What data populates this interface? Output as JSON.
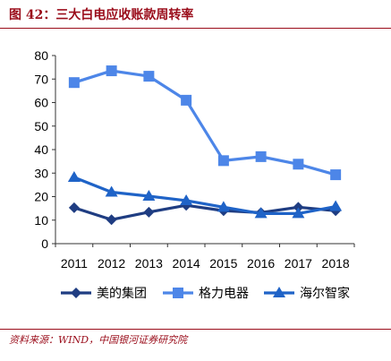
{
  "header": {
    "title": "图 42：三大白电应收账款周转率"
  },
  "footer": {
    "source": "资料来源：WIND，中国银河证券研究院"
  },
  "colors": {
    "accent": "#9a0c1a",
    "series": [
      "#1f3d82",
      "#4d86e8",
      "#1f63c7"
    ]
  },
  "chart_data": {
    "type": "line",
    "title": "",
    "xlabel": "",
    "ylabel": "",
    "x": [
      "2011",
      "2012",
      "2013",
      "2014",
      "2015",
      "2016",
      "2017",
      "2018"
    ],
    "ylim": [
      0,
      80
    ],
    "yticks": [
      0,
      10,
      20,
      30,
      40,
      50,
      60,
      70,
      80
    ],
    "grid": false,
    "legend_position": "bottom",
    "series": [
      {
        "name": "美的集团",
        "marker": "diamond",
        "color": "#1f3d82",
        "values": [
          15.3,
          10.2,
          13.4,
          16.3,
          14.0,
          13.2,
          15.5,
          14.0
        ]
      },
      {
        "name": "格力电器",
        "marker": "square",
        "color": "#4d86e8",
        "values": [
          68.5,
          73.5,
          71.2,
          61.0,
          35.3,
          37.0,
          33.8,
          29.3
        ]
      },
      {
        "name": "海尔智家",
        "marker": "triangle",
        "color": "#1f63c7",
        "values": [
          28.2,
          21.9,
          20.2,
          18.3,
          15.5,
          12.8,
          12.8,
          15.8
        ]
      }
    ]
  }
}
